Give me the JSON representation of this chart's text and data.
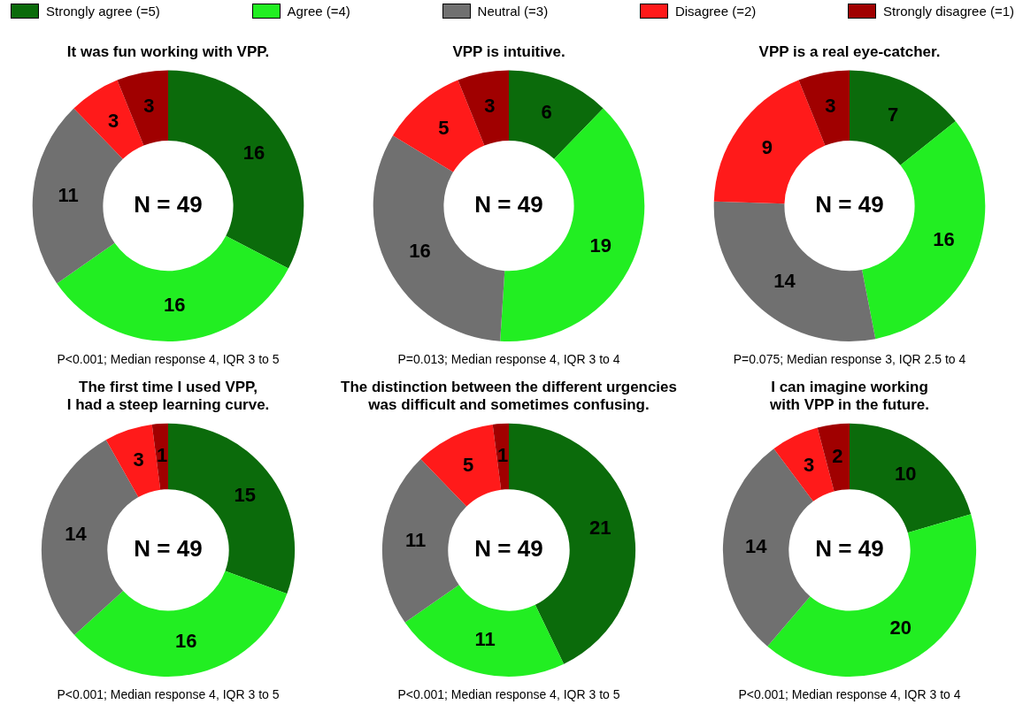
{
  "chart_data": [
    {
      "type": "donut",
      "title": "It was fun working with VPP.",
      "categories": [
        "Strongly agree (=5)",
        "Agree (=4)",
        "Neutral (=3)",
        "Disagree (=2)",
        "Strongly disagree (=1)"
      ],
      "values": [
        16,
        16,
        11,
        3,
        3
      ],
      "colors": [
        "#0b6b0b",
        "#22ee22",
        "#707070",
        "#ff1a1a",
        "#a00000"
      ],
      "data_labels": true,
      "legend": "top",
      "annotations": [
        "N = 49",
        "P<0.001; Median response 4, IQR 3 to 5"
      ]
    },
    {
      "type": "donut",
      "title": "VPP is intuitive.",
      "categories": [
        null,
        null,
        null,
        null,
        null
      ],
      "values": [
        6,
        19,
        16,
        5,
        3
      ],
      "colors": [
        "#0b6b0b",
        "#22ee22",
        "#707070",
        "#ff1a1a",
        "#a00000"
      ],
      "data_labels": true,
      "annotations": [
        "N = 49",
        "P=0.013; Median response 4, IQR 3 to 4"
      ]
    },
    {
      "type": "donut",
      "title": "VPP is a real eye-catcher.",
      "categories": [
        null,
        null,
        null,
        null,
        null
      ],
      "values": [
        7,
        16,
        14,
        9,
        3
      ],
      "colors": [
        "#0b6b0b",
        "#22ee22",
        "#707070",
        "#ff1a1a",
        "#a00000"
      ],
      "data_labels": true,
      "annotations": [
        "N = 49",
        "P=0.075; Median response 3, IQR 2.5 to 4"
      ]
    },
    {
      "type": "donut",
      "title": "The first time I used VPP,\nI had a steep learning curve.",
      "categories": [
        null,
        null,
        null,
        null,
        null
      ],
      "values": [
        15,
        16,
        14,
        3,
        1
      ],
      "colors": [
        "#0b6b0b",
        "#22ee22",
        "#707070",
        "#ff1a1a",
        "#a00000"
      ],
      "data_labels": true,
      "annotations": [
        "N = 49",
        "P<0.001; Median response 4, IQR 3 to 5"
      ]
    },
    {
      "type": "donut",
      "title": "The distinction between the different urgencies\nwas difficult and sometimes confusing.",
      "categories": [
        null,
        null,
        null,
        null,
        null
      ],
      "values": [
        21,
        11,
        11,
        5,
        1
      ],
      "colors": [
        "#0b6b0b",
        "#22ee22",
        "#707070",
        "#ff1a1a",
        "#a00000"
      ],
      "data_labels": true,
      "annotations": [
        "N = 49",
        "P<0.001; Median response 4, IQR 3 to 5"
      ]
    },
    {
      "type": "donut",
      "title": "I can imagine working\nwith VPP in the future.",
      "categories": [
        null,
        null,
        null,
        null,
        null
      ],
      "values": [
        10,
        20,
        14,
        3,
        2
      ],
      "colors": [
        "#0b6b0b",
        "#22ee22",
        "#707070",
        "#ff1a1a",
        "#a00000"
      ],
      "data_labels": true,
      "annotations": [
        "N = 49",
        "P<0.001; Median response 4, IQR 3 to 4"
      ]
    }
  ]
}
